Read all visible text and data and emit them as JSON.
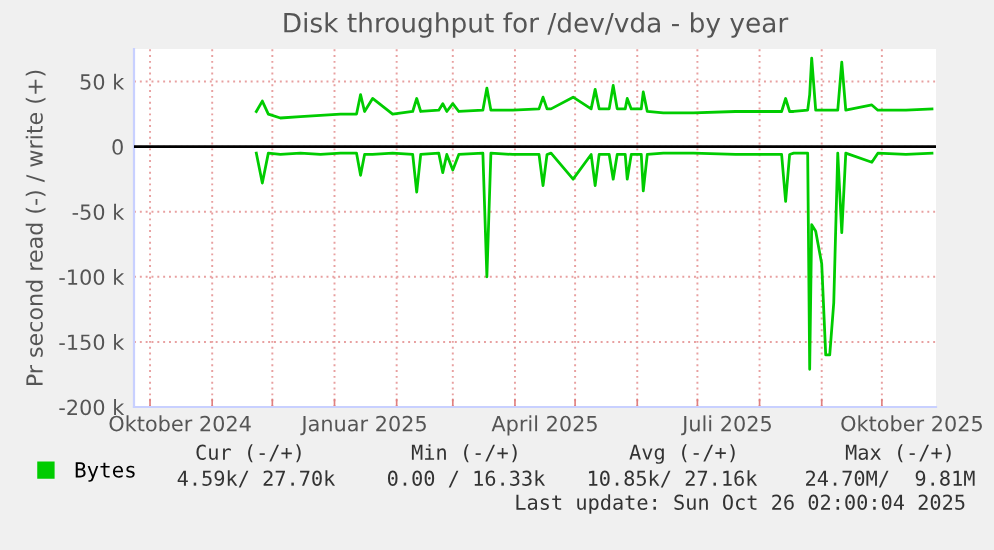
{
  "chart_data": {
    "type": "line",
    "title": "Disk throughput for /dev/vda - by year",
    "ylabel": "Pr second read (-) / write (+)",
    "x": [
      "2024-11-23",
      "2024-11-26",
      "2024-11-29",
      "2024-12-05",
      "2024-12-15",
      "2024-12-25",
      "2025-01-04",
      "2025-01-12",
      "2025-01-14",
      "2025-01-16",
      "2025-01-20",
      "2025-01-30",
      "2025-02-09",
      "2025-02-11",
      "2025-02-13",
      "2025-02-22",
      "2025-02-24",
      "2025-02-26",
      "2025-03-01",
      "2025-03-04",
      "2025-03-16",
      "2025-03-18",
      "2025-03-20",
      "2025-03-31",
      "2025-04-13",
      "2025-04-15",
      "2025-04-17",
      "2025-04-19",
      "2025-04-30",
      "2025-05-09",
      "2025-05-11",
      "2025-05-13",
      "2025-05-18",
      "2025-05-20",
      "2025-05-22",
      "2025-05-26",
      "2025-05-27",
      "2025-05-29",
      "2025-06-03",
      "2025-06-04",
      "2025-06-06",
      "2025-06-14",
      "2025-06-29",
      "2025-07-20",
      "2025-08-12",
      "2025-08-14",
      "2025-08-16",
      "2025-08-18",
      "2025-08-25",
      "2025-08-26",
      "2025-08-27",
      "2025-08-29",
      "2025-09-01",
      "2025-09-03",
      "2025-09-05",
      "2025-09-07",
      "2025-09-09",
      "2025-09-11",
      "2025-09-13",
      "2025-09-26",
      "2025-09-29",
      "2025-10-13",
      "2025-10-26"
    ],
    "series": [
      {
        "name": "Bytes",
        "color": "#00cc00",
        "values": [
          27000,
          35000,
          25000,
          22000,
          23000,
          24000,
          25000,
          25000,
          40000,
          27000,
          37000,
          25000,
          27000,
          37000,
          27000,
          28000,
          33000,
          27000,
          33000,
          27000,
          28000,
          45000,
          28000,
          28000,
          29000,
          38000,
          29000,
          29000,
          38000,
          29000,
          44000,
          29000,
          29000,
          47000,
          29000,
          29000,
          37000,
          29000,
          29000,
          42000,
          27000,
          26000,
          26000,
          27000,
          27000,
          37000,
          27000,
          27000,
          28000,
          40000,
          68000,
          28000,
          28000,
          28000,
          28000,
          28000,
          28000,
          65000,
          28000,
          32000,
          28000,
          28000,
          29000
        ]
      },
      {
        "color": "#00cc00",
        "values": [
          -5000,
          -28000,
          -5000,
          -6000,
          -5000,
          -6000,
          -5000,
          -5000,
          -22000,
          -6000,
          -6000,
          -5000,
          -6000,
          -35000,
          -6000,
          -5000,
          -20000,
          -6000,
          -18000,
          -6000,
          -5000,
          -100000,
          -5000,
          -6000,
          -6000,
          -30000,
          -6000,
          -5000,
          -25000,
          -6000,
          -30000,
          -6000,
          -6000,
          -25000,
          -6000,
          -6000,
          -25000,
          -6000,
          -6000,
          -34000,
          -6000,
          -5000,
          -5000,
          -6000,
          -6000,
          -42000,
          -6000,
          -5000,
          -5000,
          -171000,
          -60000,
          -65000,
          -90000,
          -160000,
          -160000,
          -120000,
          -5000,
          -66000,
          -5000,
          -12000,
          -5000,
          -6000,
          -5000
        ]
      }
    ],
    "xlim": [
      "2024-09-23",
      "2025-10-28"
    ],
    "xticks": [
      {
        "value": "2024-10-01",
        "label": null
      },
      {
        "value": "2024-10-16",
        "label": "Oktober 2024"
      },
      {
        "value": "2024-11-01",
        "label": null
      },
      {
        "value": "2024-12-01",
        "label": null
      },
      {
        "value": "2025-01-01",
        "label": null
      },
      {
        "value": "2025-01-16",
        "label": "Januar 2025"
      },
      {
        "value": "2025-02-01",
        "label": null
      },
      {
        "value": "2025-03-01",
        "label": null
      },
      {
        "value": "2025-04-01",
        "label": null
      },
      {
        "value": "2025-04-16",
        "label": "April 2025"
      },
      {
        "value": "2025-05-01",
        "label": null
      },
      {
        "value": "2025-06-01",
        "label": null
      },
      {
        "value": "2025-07-01",
        "label": null
      },
      {
        "value": "2025-07-16",
        "label": "Juli 2025"
      },
      {
        "value": "2025-08-01",
        "label": null
      },
      {
        "value": "2025-09-01",
        "label": null
      },
      {
        "value": "2025-10-01",
        "label": null
      },
      {
        "value": "2025-10-16",
        "label": "Oktober 2025"
      }
    ],
    "ylim": [
      -200000,
      75000
    ],
    "yticks": [
      {
        "value": -200000,
        "label": "-200 k"
      },
      {
        "value": -150000,
        "label": "-150 k"
      },
      {
        "value": -100000,
        "label": "-100 k"
      },
      {
        "value": -50000,
        "label": "-50 k"
      },
      0,
      {
        "value": 50000,
        "label": "50 k"
      }
    ],
    "ref_lines": [
      {
        "axis": "y",
        "value": 0,
        "color": "#000000"
      }
    ],
    "grid": true,
    "legend": "bottom left",
    "annotations": [
      "Cur (-/+)",
      "Min (-/+)",
      "Avg (-/+)",
      "Max (-/+)",
      "4.59k/ 27.70k",
      "0.00 / 16.33k",
      "10.85k/ 27.16k",
      "24.70M/  9.81M",
      "Last update: Sun Oct 26 02:00:04 2025"
    ]
  }
}
